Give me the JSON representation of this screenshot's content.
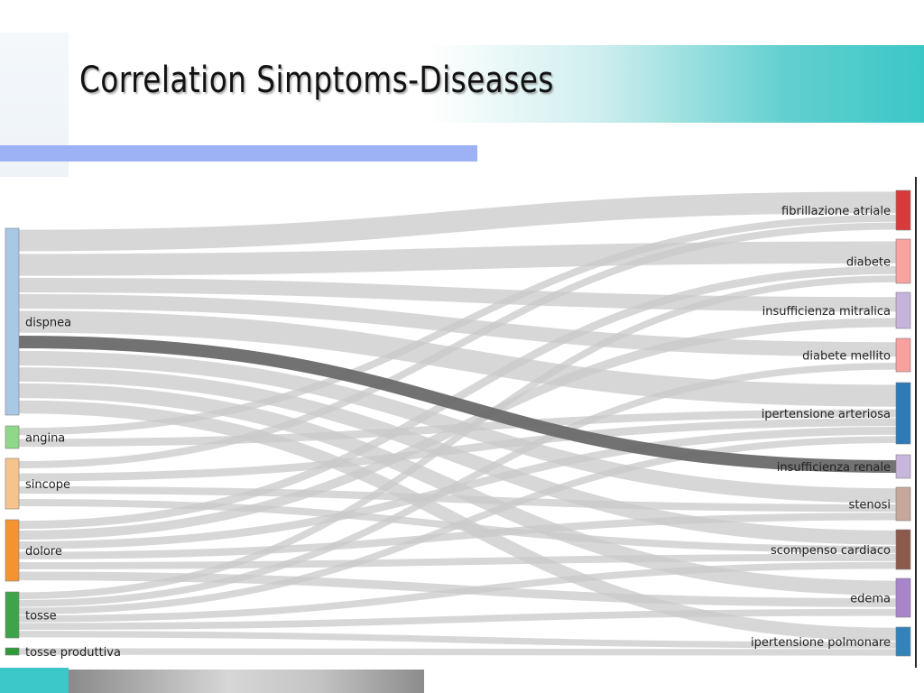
{
  "slide": {
    "title": "Correlation Simptoms-Diseases"
  },
  "colors": {
    "title_band_end": "#3cc7c7",
    "accent_bar": "#9db2f5",
    "footer_teal": "#3cc8c8",
    "link_default": "#c9c9c9",
    "link_highlight": "#6a6a6a"
  },
  "chart_data": {
    "type": "sankey",
    "sources": [
      {
        "name": "dispnea",
        "color": "#a9c8e6"
      },
      {
        "name": "angina",
        "color": "#8fd88a"
      },
      {
        "name": "sincope",
        "color": "#f7c38c"
      },
      {
        "name": "dolore",
        "color": "#f59330"
      },
      {
        "name": "tosse",
        "color": "#3ea44a"
      },
      {
        "name": "tosse produttiva",
        "color": "#2e9a3a"
      }
    ],
    "targets": [
      {
        "name": "fibrillazione atriale",
        "color": "#d63a3a"
      },
      {
        "name": "diabete",
        "color": "#f7a3a0"
      },
      {
        "name": "insufficienza mitralica",
        "color": "#c6b3dc"
      },
      {
        "name": "diabete mellito",
        "color": "#f7a09d"
      },
      {
        "name": "ipertensione arteriosa",
        "color": "#2f79b4"
      },
      {
        "name": "insufficienza renale",
        "color": "#c9b6dd"
      },
      {
        "name": "stenosi",
        "color": "#c7a79c"
      },
      {
        "name": "scompenso cardiaco",
        "color": "#8c5a4c"
      },
      {
        "name": "edema",
        "color": "#a884cb"
      },
      {
        "name": "ipertensione polmonare",
        "color": "#3382ba"
      }
    ],
    "highlighted_link": {
      "source": "dispnea",
      "target": "insufficienza renale"
    },
    "links": [
      {
        "source": "dispnea",
        "target": "fibrillazione atriale",
        "value": 3
      },
      {
        "source": "dispnea",
        "target": "diabete",
        "value": 3
      },
      {
        "source": "dispnea",
        "target": "insufficienza mitralica",
        "value": 2
      },
      {
        "source": "dispnea",
        "target": "diabete mellito",
        "value": 2
      },
      {
        "source": "dispnea",
        "target": "ipertensione arteriosa",
        "value": 3
      },
      {
        "source": "dispnea",
        "target": "insufficienza renale",
        "value": 2
      },
      {
        "source": "dispnea",
        "target": "stenosi",
        "value": 2
      },
      {
        "source": "dispnea",
        "target": "scompenso cardiaco",
        "value": 2
      },
      {
        "source": "dispnea",
        "target": "edema",
        "value": 2
      },
      {
        "source": "dispnea",
        "target": "ipertensione polmonare",
        "value": 2
      },
      {
        "source": "angina",
        "target": "fibrillazione atriale",
        "value": 1
      },
      {
        "source": "angina",
        "target": "ipertensione arteriosa",
        "value": 1
      },
      {
        "source": "sincope",
        "target": "fibrillazione atriale",
        "value": 1
      },
      {
        "source": "sincope",
        "target": "stenosi",
        "value": 1
      },
      {
        "source": "sincope",
        "target": "scompenso cardiaco",
        "value": 1
      },
      {
        "source": "sincope",
        "target": "ipertensione arteriosa",
        "value": 1
      },
      {
        "source": "dolore",
        "target": "diabete",
        "value": 1
      },
      {
        "source": "dolore",
        "target": "insufficienza mitralica",
        "value": 1
      },
      {
        "source": "dolore",
        "target": "ipertensione arteriosa",
        "value": 1
      },
      {
        "source": "dolore",
        "target": "stenosi",
        "value": 1
      },
      {
        "source": "dolore",
        "target": "scompenso cardiaco",
        "value": 1
      },
      {
        "source": "dolore",
        "target": "edema",
        "value": 1
      },
      {
        "source": "tosse",
        "target": "diabete",
        "value": 1
      },
      {
        "source": "tosse",
        "target": "diabete mellito",
        "value": 1
      },
      {
        "source": "tosse",
        "target": "ipertensione arteriosa",
        "value": 1
      },
      {
        "source": "tosse",
        "target": "scompenso cardiaco",
        "value": 1
      },
      {
        "source": "tosse",
        "target": "edema",
        "value": 1
      },
      {
        "source": "tosse",
        "target": "ipertensione polmonare",
        "value": 1
      },
      {
        "source": "tosse produttiva",
        "target": "ipertensione polmonare",
        "value": 1
      }
    ]
  }
}
